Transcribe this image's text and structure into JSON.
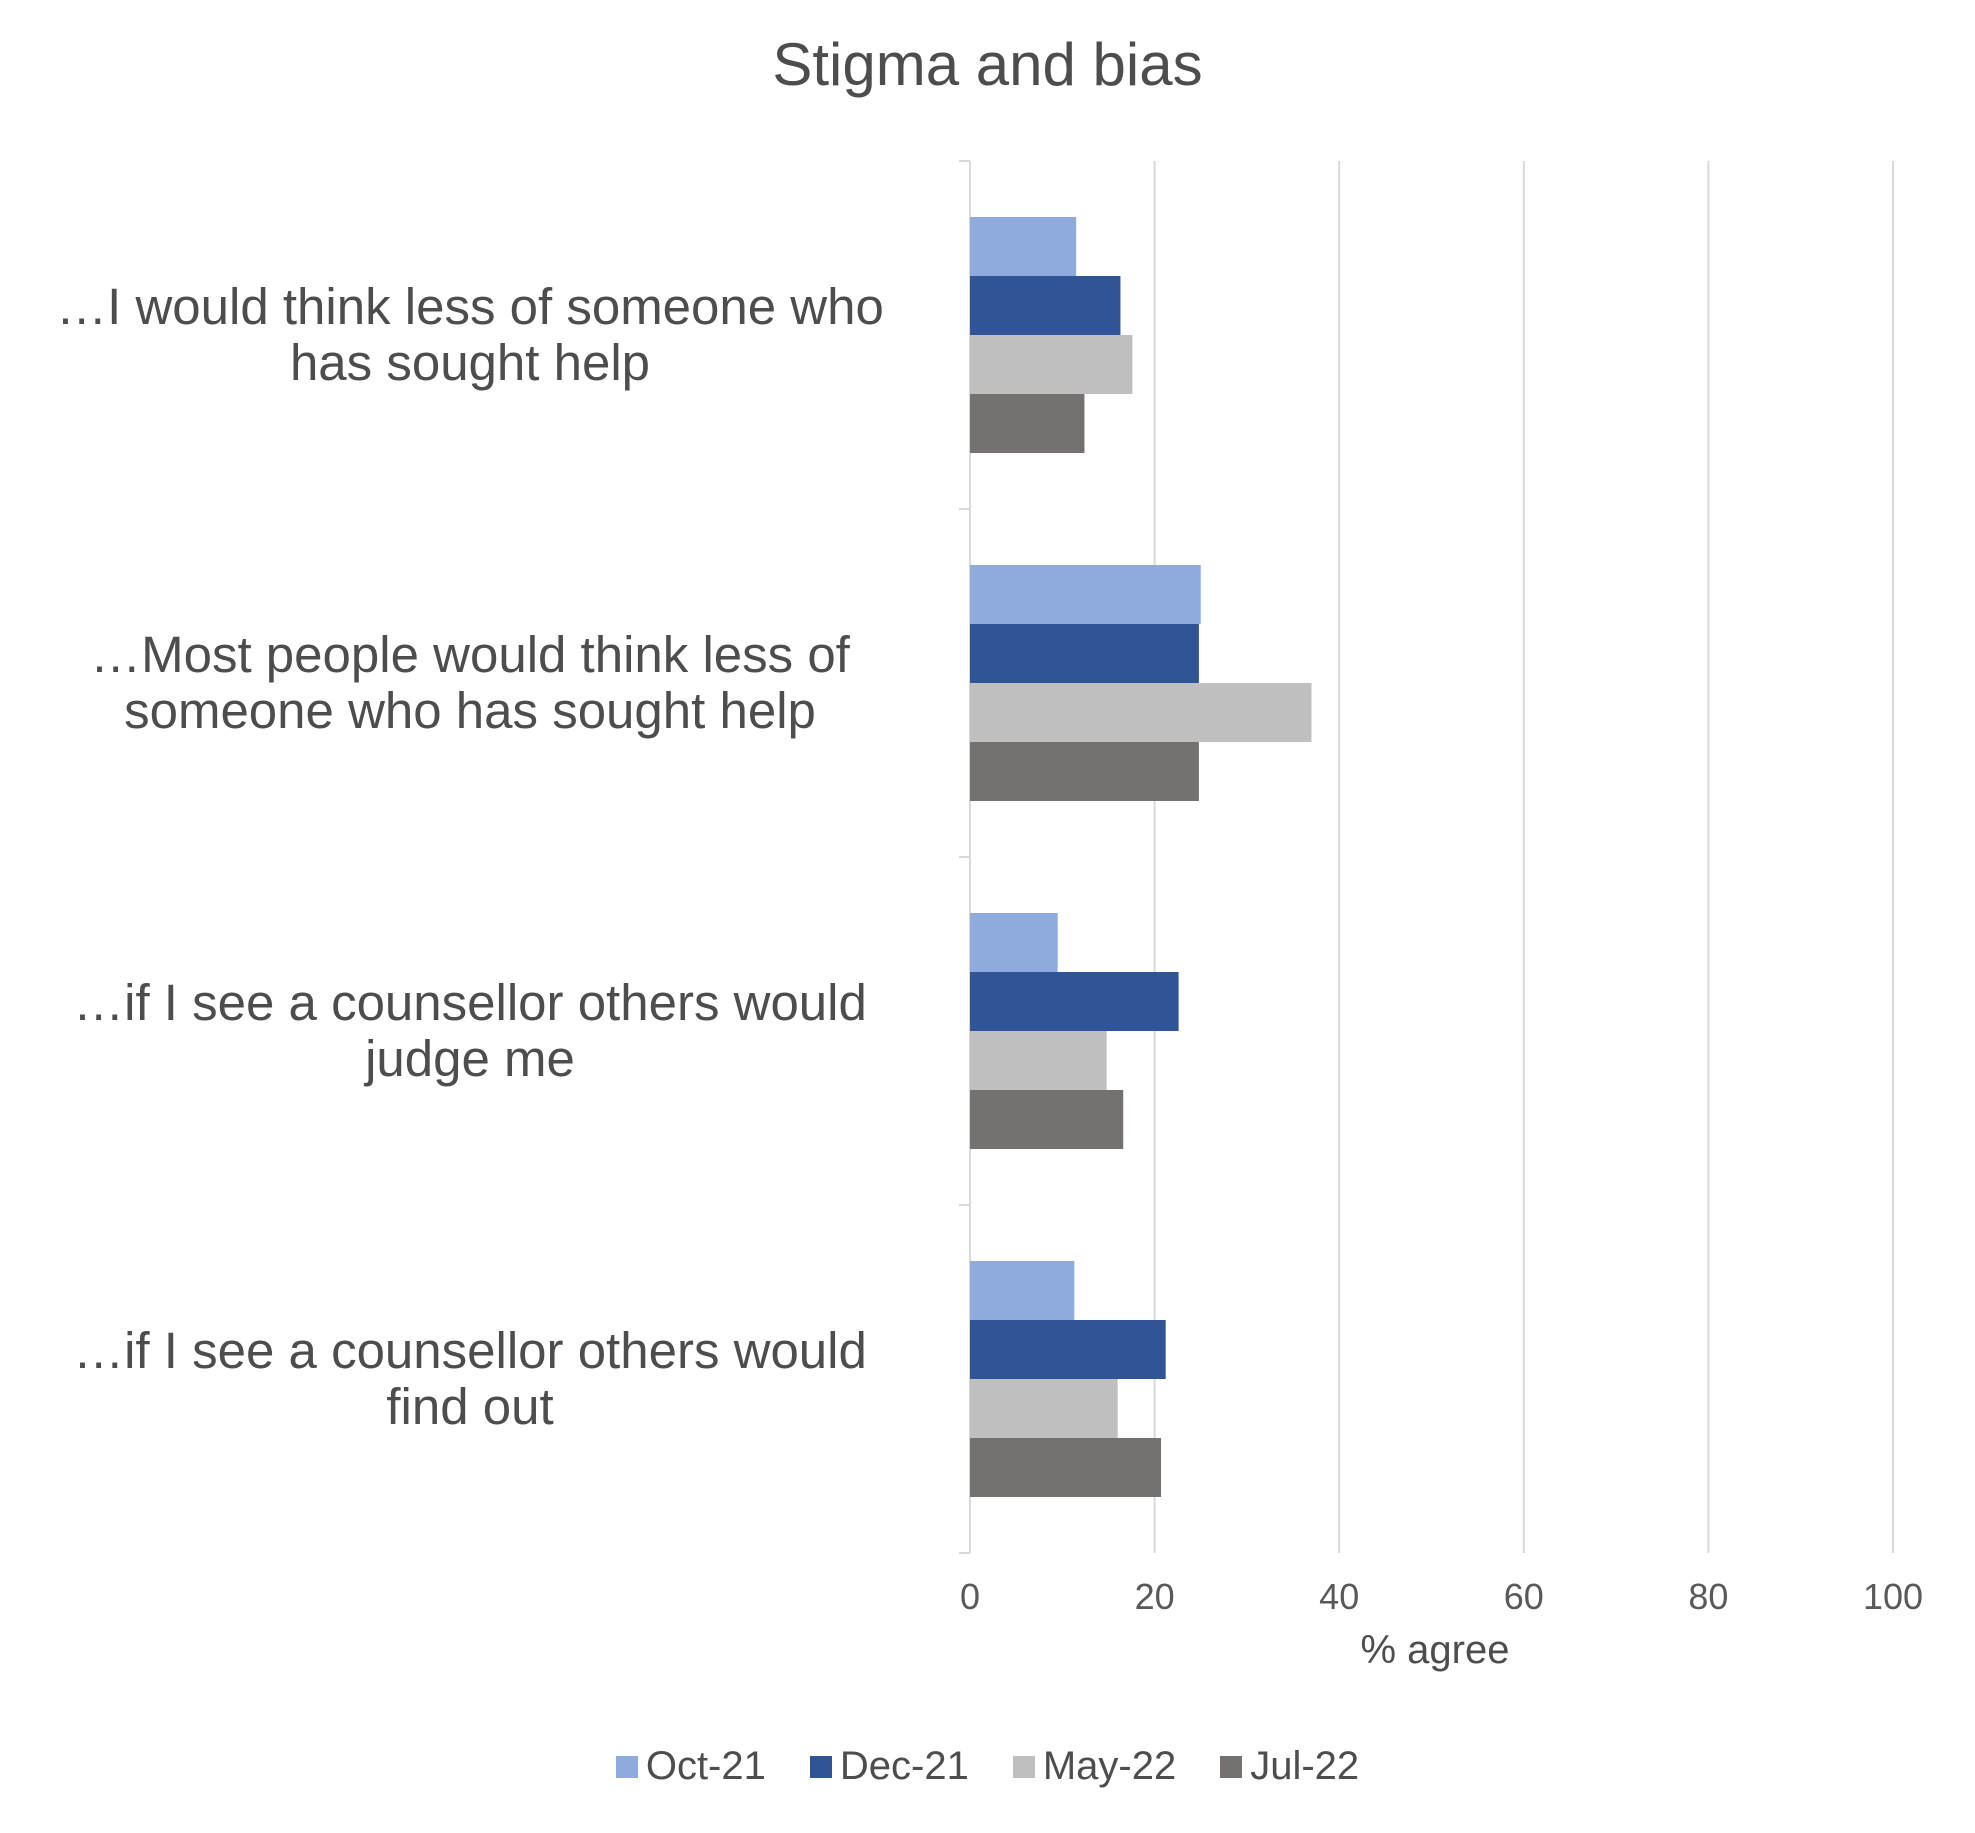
{
  "chart_data": {
    "type": "bar",
    "orientation": "horizontal",
    "title": "Stigma and bias",
    "xlabel": "% agree",
    "ylabel": "",
    "xlim": [
      0,
      100
    ],
    "x_ticks": [
      "0",
      "20",
      "40",
      "60",
      "80",
      "100"
    ],
    "grid": true,
    "legend_position": "bottom",
    "categories": [
      [
        "…I would think less of someone who",
        "has sought help"
      ],
      [
        "…Most people would think less of",
        "someone who has sought help"
      ],
      [
        "…if I see a counsellor others would",
        "judge me"
      ],
      [
        "…if I see a counsellor others would",
        "find out"
      ]
    ],
    "series": [
      {
        "name": "Oct-21",
        "color": "#8faadc",
        "values": [
          11.5,
          25,
          9.5,
          11.3
        ]
      },
      {
        "name": "Dec-21",
        "color": "#2f5597",
        "values": [
          16.3,
          24.8,
          22.6,
          21.2
        ]
      },
      {
        "name": "May-22",
        "color": "#bfbfbf",
        "values": [
          17.6,
          37,
          14.8,
          16
        ]
      },
      {
        "name": "Jul-22",
        "color": "#767171",
        "values": [
          12.4,
          24.8,
          16.6,
          20.7
        ]
      }
    ]
  }
}
